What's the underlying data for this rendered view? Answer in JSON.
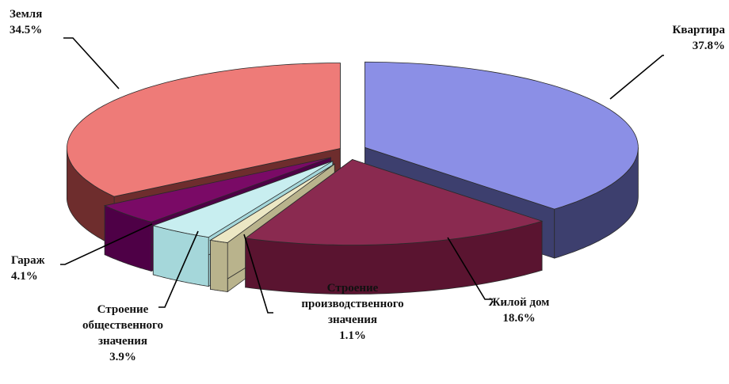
{
  "chart_data": {
    "type": "pie",
    "title": "",
    "unit": "%",
    "categories": [
      "Квартира",
      "Жилой дом",
      "Строение производственного значения",
      "Строение общественного значения",
      "Гараж",
      "Земля"
    ],
    "values": [
      37.8,
      18.6,
      1.1,
      3.9,
      4.1,
      34.5
    ],
    "slices": [
      {
        "label_lines": [
          "Квартира"
        ],
        "value": "37.8%",
        "color": "#8b8fe6",
        "side_color": "#3d3f6e"
      },
      {
        "label_lines": [
          "Жилой дом"
        ],
        "value": "18.6%",
        "color": "#8a2a50",
        "side_color": "#5a1430"
      },
      {
        "label_lines": [
          "Строение",
          "производственного",
          "значения"
        ],
        "value": "1.1%",
        "color": "#ece7c4",
        "side_color": "#b9b38c"
      },
      {
        "label_lines": [
          "Строение",
          "общественного",
          "значения"
        ],
        "value": "3.9%",
        "color": "#c8eef0",
        "side_color": "#a5d7da"
      },
      {
        "label_lines": [
          "Гараж"
        ],
        "value": "4.1%",
        "color": "#7a0a66",
        "side_color": "#4e0046"
      },
      {
        "label_lines": [
          "Земля"
        ],
        "value": "34.5%",
        "color": "#ee7b78",
        "side_color": "#6e2d2d"
      }
    ],
    "style": "3d-exploded-pie",
    "legend": "none"
  }
}
